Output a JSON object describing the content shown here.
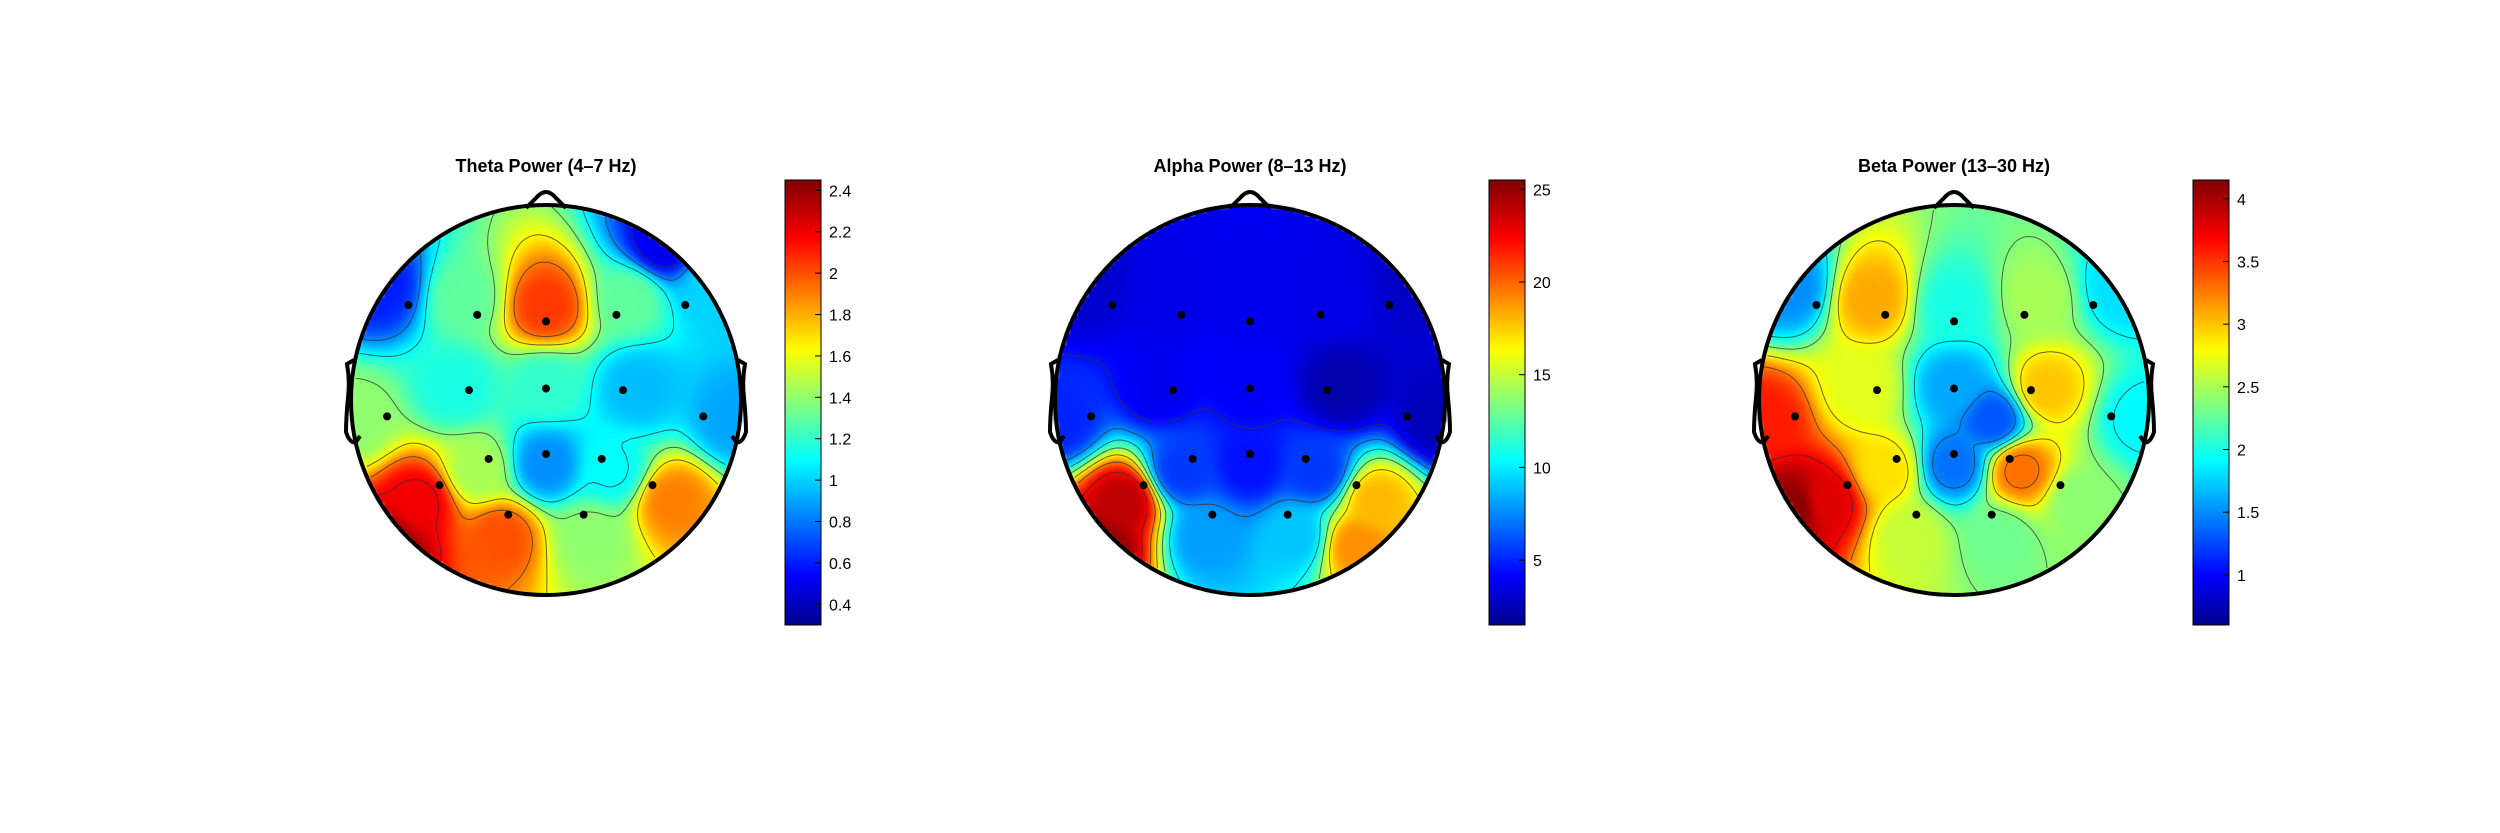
{
  "figure": {
    "background": "#ffffff",
    "colormap": "jet",
    "colormap_stops": [
      "#00008f",
      "#0000ff",
      "#00ffff",
      "#ffff00",
      "#ff0000",
      "#800000"
    ]
  },
  "chart_data": [
    {
      "type": "heatmap",
      "subtype": "eeg-topoplot",
      "title": "Theta Power (4–7 Hz)",
      "colorbar": {
        "range": [
          0.3,
          2.45
        ],
        "ticks": [
          0.4,
          0.6,
          0.8,
          1,
          1.2,
          1.4,
          1.6,
          1.8,
          2,
          2.2,
          2.4
        ],
        "tick_labels": [
          "0.4",
          "0.6",
          "0.8",
          "1",
          "1.2",
          "1.4",
          "1.6",
          "1.8",
          "2",
          "2.2",
          "2.4"
        ]
      },
      "electrodes": [
        {
          "x": -0.84,
          "y": 0.58,
          "value": 0.6
        },
        {
          "x": -0.42,
          "y": 0.52,
          "value": 1.3
        },
        {
          "x": 0.0,
          "y": 0.48,
          "value": 2.05
        },
        {
          "x": 0.43,
          "y": 0.52,
          "value": 1.3
        },
        {
          "x": 0.85,
          "y": 0.58,
          "value": 1.0
        },
        {
          "x": -0.47,
          "y": 0.06,
          "value": 1.15
        },
        {
          "x": 0.0,
          "y": 0.07,
          "value": 1.2
        },
        {
          "x": 0.47,
          "y": 0.06,
          "value": 0.95
        },
        {
          "x": -0.35,
          "y": -0.36,
          "value": 1.45
        },
        {
          "x": 0.0,
          "y": -0.33,
          "value": 0.85
        },
        {
          "x": 0.34,
          "y": -0.36,
          "value": 1.1
        },
        {
          "x": -0.65,
          "y": -0.52,
          "value": 2.2
        },
        {
          "x": -0.23,
          "y": -0.7,
          "value": 2.0
        },
        {
          "x": 0.23,
          "y": -0.7,
          "value": 1.4
        },
        {
          "x": 0.65,
          "y": -0.52,
          "value": 1.9
        },
        {
          "x": -0.97,
          "y": -0.1,
          "value": 1.4
        },
        {
          "x": 0.96,
          "y": -0.1,
          "value": 0.9
        }
      ],
      "extra_sources": [
        {
          "x": -0.8,
          "y": -0.75,
          "value": 2.4
        },
        {
          "x": 0.6,
          "y": 0.8,
          "value": 0.5
        }
      ]
    },
    {
      "type": "heatmap",
      "subtype": "eeg-topoplot",
      "title": "Alpha Power (8–13 Hz)",
      "colorbar": {
        "range": [
          1.5,
          25.5
        ],
        "ticks": [
          5,
          10,
          15,
          20,
          25
        ],
        "tick_labels": [
          "5",
          "10",
          "15",
          "20",
          "25"
        ]
      },
      "electrodes": [
        {
          "x": -0.84,
          "y": 0.58,
          "value": 3.0
        },
        {
          "x": -0.42,
          "y": 0.52,
          "value": 3.6
        },
        {
          "x": 0.0,
          "y": 0.48,
          "value": 3.8
        },
        {
          "x": 0.43,
          "y": 0.52,
          "value": 3.6
        },
        {
          "x": 0.85,
          "y": 0.58,
          "value": 2.8
        },
        {
          "x": -0.47,
          "y": 0.06,
          "value": 3.8
        },
        {
          "x": 0.0,
          "y": 0.07,
          "value": 4.0
        },
        {
          "x": 0.47,
          "y": 0.06,
          "value": 2.2
        },
        {
          "x": -0.35,
          "y": -0.36,
          "value": 5.5
        },
        {
          "x": 0.0,
          "y": -0.33,
          "value": 4.5
        },
        {
          "x": 0.34,
          "y": -0.36,
          "value": 5.5
        },
        {
          "x": -0.65,
          "y": -0.52,
          "value": 24.0
        },
        {
          "x": -0.23,
          "y": -0.7,
          "value": 8.0
        },
        {
          "x": 0.23,
          "y": -0.7,
          "value": 9.0
        },
        {
          "x": 0.65,
          "y": -0.52,
          "value": 18.0
        },
        {
          "x": -0.97,
          "y": -0.1,
          "value": 5.0
        },
        {
          "x": 0.96,
          "y": -0.1,
          "value": 2.5
        }
      ],
      "extra_sources": [
        {
          "x": -0.75,
          "y": -0.75,
          "value": 25.0
        },
        {
          "x": 0.55,
          "y": -0.75,
          "value": 19.0
        }
      ]
    },
    {
      "type": "heatmap",
      "subtype": "eeg-topoplot",
      "title": "Beta Power (13–30 Hz)",
      "colorbar": {
        "range": [
          0.6,
          4.15
        ],
        "ticks": [
          1,
          1.5,
          2,
          2.5,
          3,
          3.5,
          4
        ],
        "tick_labels": [
          "1",
          "1.5",
          "2",
          "2.5",
          "3",
          "3.5",
          "4"
        ]
      },
      "electrodes": [
        {
          "x": -0.84,
          "y": 0.58,
          "value": 1.5
        },
        {
          "x": -0.42,
          "y": 0.52,
          "value": 3.1
        },
        {
          "x": 0.0,
          "y": 0.48,
          "value": 2.0
        },
        {
          "x": 0.43,
          "y": 0.52,
          "value": 2.5
        },
        {
          "x": 0.85,
          "y": 0.58,
          "value": 1.8
        },
        {
          "x": -0.47,
          "y": 0.06,
          "value": 2.7
        },
        {
          "x": 0.0,
          "y": 0.07,
          "value": 1.6
        },
        {
          "x": 0.47,
          "y": 0.06,
          "value": 3.0
        },
        {
          "x": -0.35,
          "y": -0.36,
          "value": 2.9
        },
        {
          "x": 0.0,
          "y": -0.33,
          "value": 1.4
        },
        {
          "x": 0.34,
          "y": -0.36,
          "value": 3.3
        },
        {
          "x": -0.65,
          "y": -0.52,
          "value": 3.8
        },
        {
          "x": -0.23,
          "y": -0.7,
          "value": 2.6
        },
        {
          "x": 0.23,
          "y": -0.7,
          "value": 2.3
        },
        {
          "x": 0.65,
          "y": -0.52,
          "value": 2.4
        },
        {
          "x": -0.97,
          "y": -0.1,
          "value": 3.6
        },
        {
          "x": 0.96,
          "y": -0.1,
          "value": 1.9
        }
      ],
      "extra_sources": [
        {
          "x": -0.82,
          "y": -0.55,
          "value": 4.1
        },
        {
          "x": 0.2,
          "y": -0.1,
          "value": 1.3
        }
      ]
    }
  ]
}
